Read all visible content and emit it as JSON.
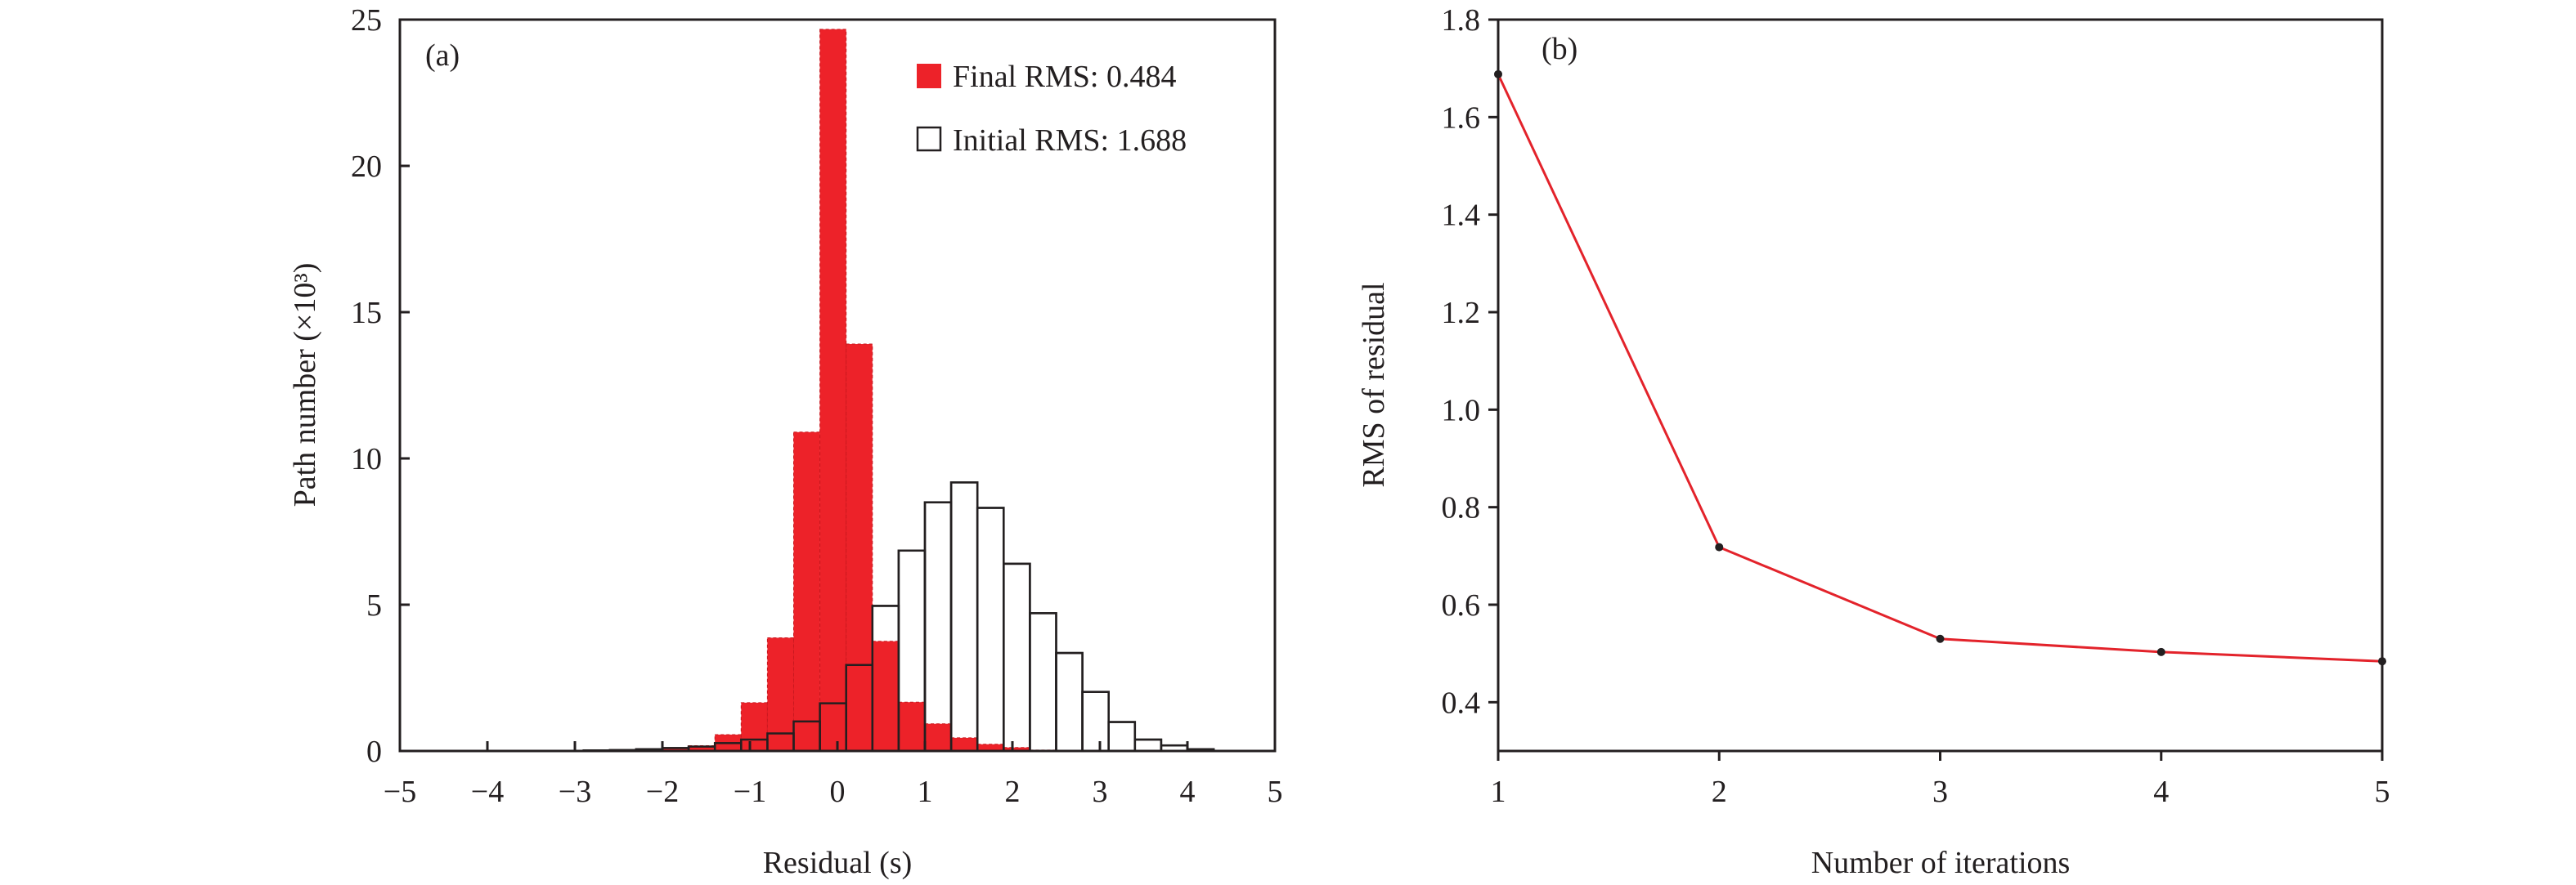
{
  "chart_data": [
    {
      "type": "bar",
      "panel_label": "(a)",
      "xlabel": "Residual (s)",
      "ylabel": "Path number (×10³)",
      "xlim": [
        -5,
        5
      ],
      "ylim": [
        0,
        25
      ],
      "xticks": [
        "−5",
        "−4",
        "−3",
        "−2",
        "−1",
        "0",
        "1",
        "2",
        "3",
        "4",
        "5"
      ],
      "yticks": [
        "0",
        "5",
        "10",
        "15",
        "20",
        "25"
      ],
      "bin_edges": [
        -2.9,
        -2.6,
        -2.3,
        -2.0,
        -1.7,
        -1.4,
        -1.1,
        -0.8,
        -0.5,
        -0.2,
        0.1,
        0.4,
        0.7,
        1.0,
        1.3,
        1.6,
        1.9,
        2.2,
        2.5,
        2.8,
        3.1,
        3.4,
        3.7,
        4.0,
        4.3
      ],
      "legend_position": "top-right",
      "grid": false,
      "series": [
        {
          "name": "Initial RMS: 1.688",
          "color": "#ffffff",
          "edge": "#231f20",
          "values": [
            0.02,
            0.03,
            0.06,
            0.1,
            0.15,
            0.27,
            0.39,
            0.6,
            1.01,
            1.63,
            2.94,
            4.96,
            6.85,
            8.5,
            9.18,
            8.31,
            6.4,
            4.71,
            3.35,
            2.02,
            0.99,
            0.39,
            0.19,
            0.06
          ]
        },
        {
          "name": "Final RMS: 0.484",
          "color": "#ed2229",
          "edge": "#ed2229",
          "values": [
            0.01,
            0.02,
            0.05,
            0.1,
            0.18,
            0.56,
            1.65,
            3.87,
            10.9,
            24.67,
            13.91,
            3.75,
            1.67,
            0.93,
            0.45,
            0.23,
            0.12,
            0.03,
            0,
            0,
            0,
            0,
            0,
            0
          ]
        }
      ]
    },
    {
      "type": "line",
      "panel_label": "(b)",
      "xlabel": "Number of iterations",
      "ylabel": "RMS of residual",
      "xlim": [
        1,
        5
      ],
      "ylim": [
        0.3,
        1.8
      ],
      "xticks": [
        "1",
        "2",
        "3",
        "4",
        "5"
      ],
      "yticks": [
        "0.4",
        "0.6",
        "0.8",
        "1.0",
        "1.2",
        "1.4",
        "1.6",
        "1.8"
      ],
      "grid": false,
      "line_color": "#e3232b",
      "marker_color": "#231f20",
      "x": [
        1,
        2,
        3,
        4,
        5
      ],
      "y": [
        1.688,
        0.718,
        0.53,
        0.503,
        0.484
      ]
    }
  ]
}
